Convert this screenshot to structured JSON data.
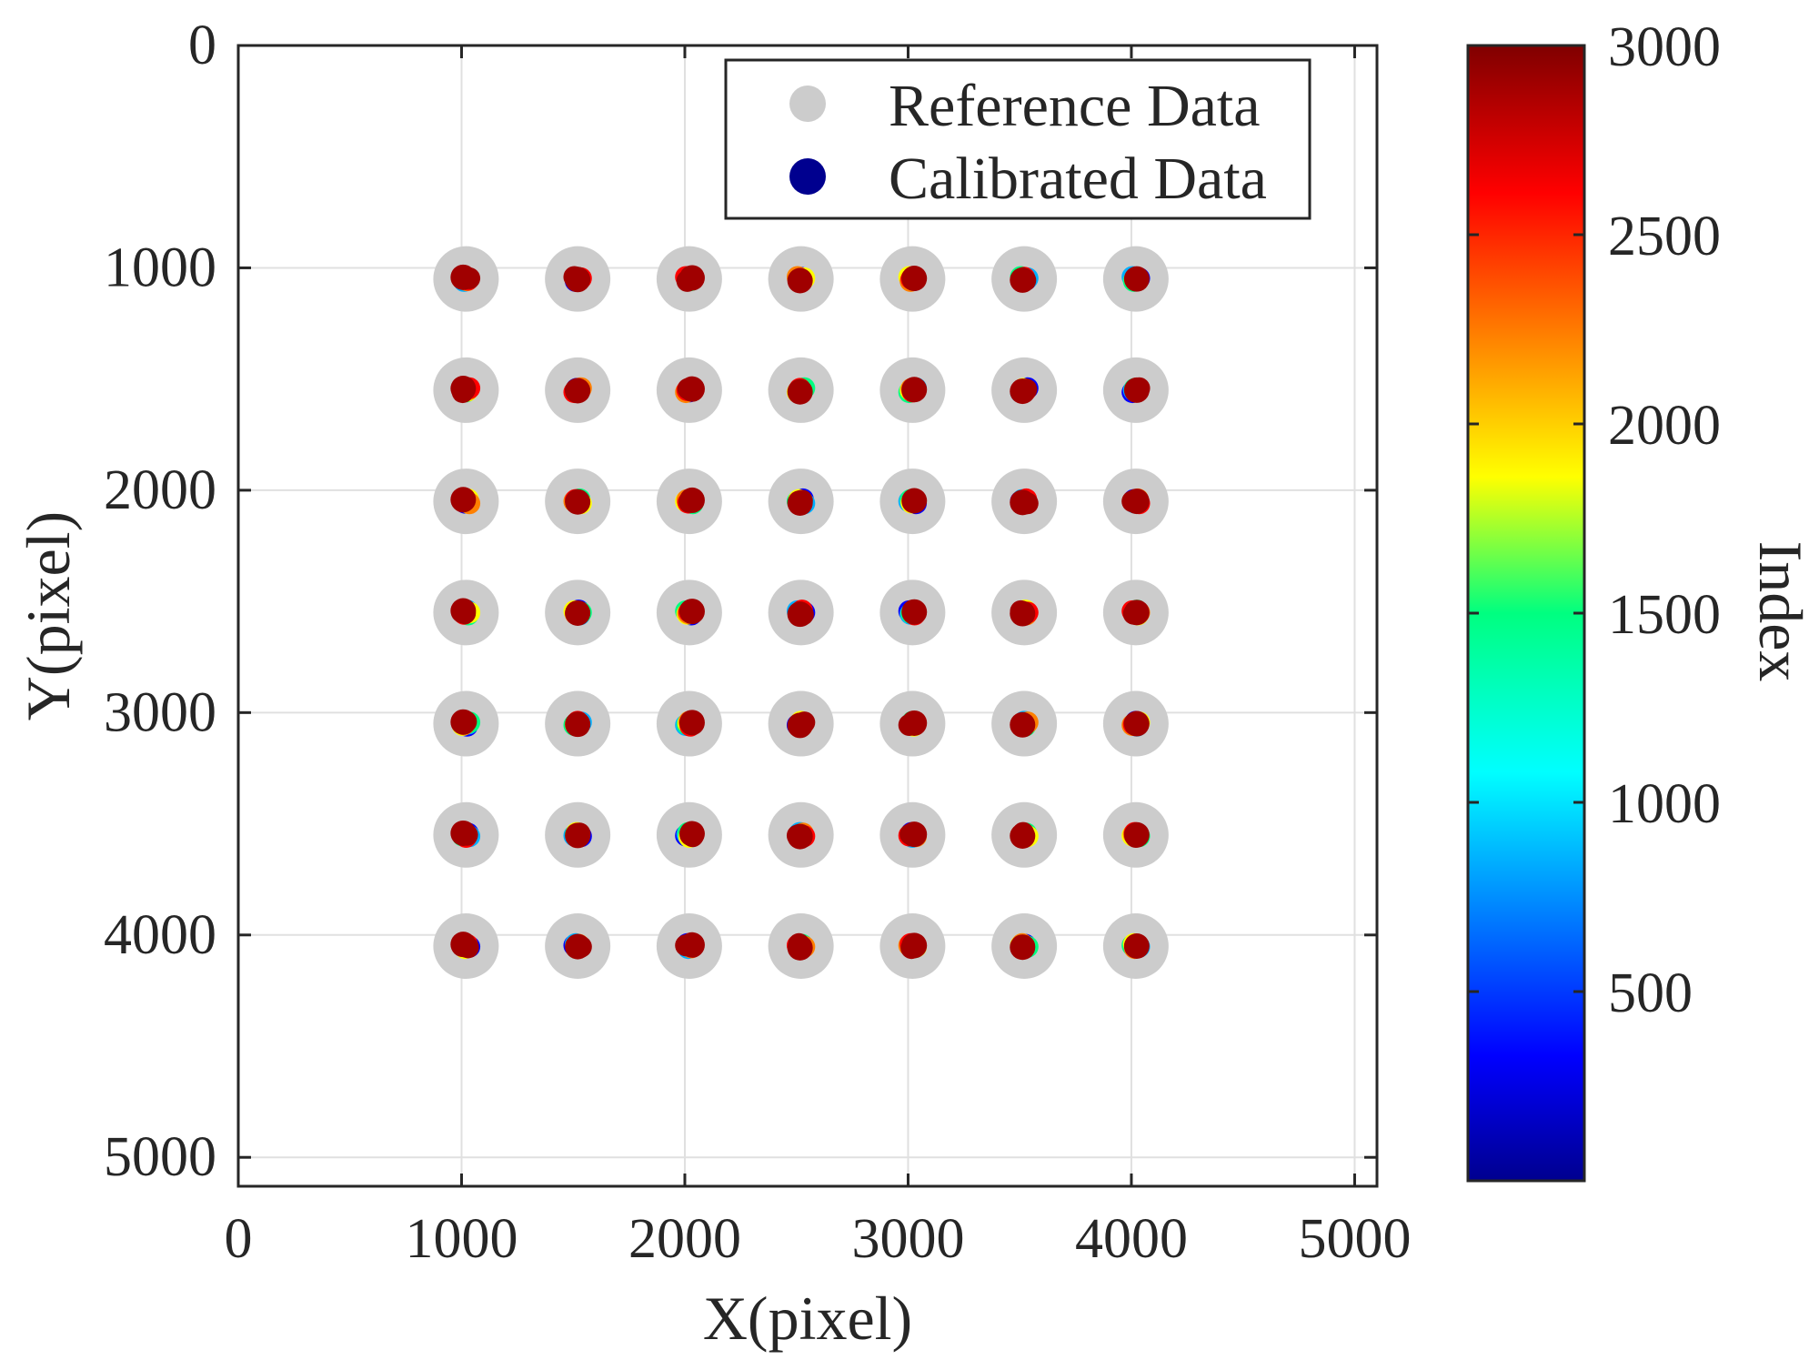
{
  "chart_data": {
    "type": "scatter",
    "title": "",
    "xlabel": "X(pixel)",
    "ylabel": "Y(pixel)",
    "xlim": [
      0,
      5100
    ],
    "ylim": [
      5130,
      0
    ],
    "y_reversed": true,
    "grid": true,
    "xticks": [
      0,
      1000,
      2000,
      3000,
      4000,
      5000
    ],
    "xtick_labels": [
      "0",
      "1000",
      "2000",
      "3000",
      "4000",
      "5000"
    ],
    "yticks": [
      0,
      1000,
      2000,
      3000,
      4000,
      5000
    ],
    "ytick_labels": [
      "0",
      "1000",
      "2000",
      "3000",
      "4000",
      "5000"
    ],
    "legend": {
      "position": "top-right",
      "entries": [
        {
          "label": "Reference Data",
          "color": "#cccccc"
        },
        {
          "label": "Calibrated Data",
          "color": "#00008f"
        }
      ]
    },
    "reference_points": {
      "x": [
        1020,
        1520,
        2020,
        2520,
        3020,
        3520,
        4020
      ],
      "y": [
        1050,
        1550,
        2050,
        2550,
        3050,
        3550,
        4050
      ]
    },
    "calibrated_points": {
      "offsets_x": [
        -25,
        -15,
        -8,
        0,
        8,
        15,
        25
      ],
      "offsets_y": [
        -15,
        15,
        0,
        -10,
        10,
        5,
        -5
      ],
      "color_series": [
        "#0000ff",
        "#00b0ff",
        "#00ff80",
        "#ffff00",
        "#ff8000",
        "#ff0000",
        "#a00000"
      ],
      "final_color": "#a00000"
    },
    "colorbar": {
      "label": "Index",
      "range": [
        0,
        3000
      ],
      "ticks": [
        500,
        1000,
        1500,
        2000,
        2500,
        3000
      ],
      "tick_labels": [
        "500",
        "1000",
        "1500",
        "2000",
        "2500",
        "3000"
      ],
      "colormap": "jet"
    },
    "colors": {
      "axes": "#262626",
      "grid": "#e0e0e0",
      "reference": "#cccccc"
    }
  }
}
